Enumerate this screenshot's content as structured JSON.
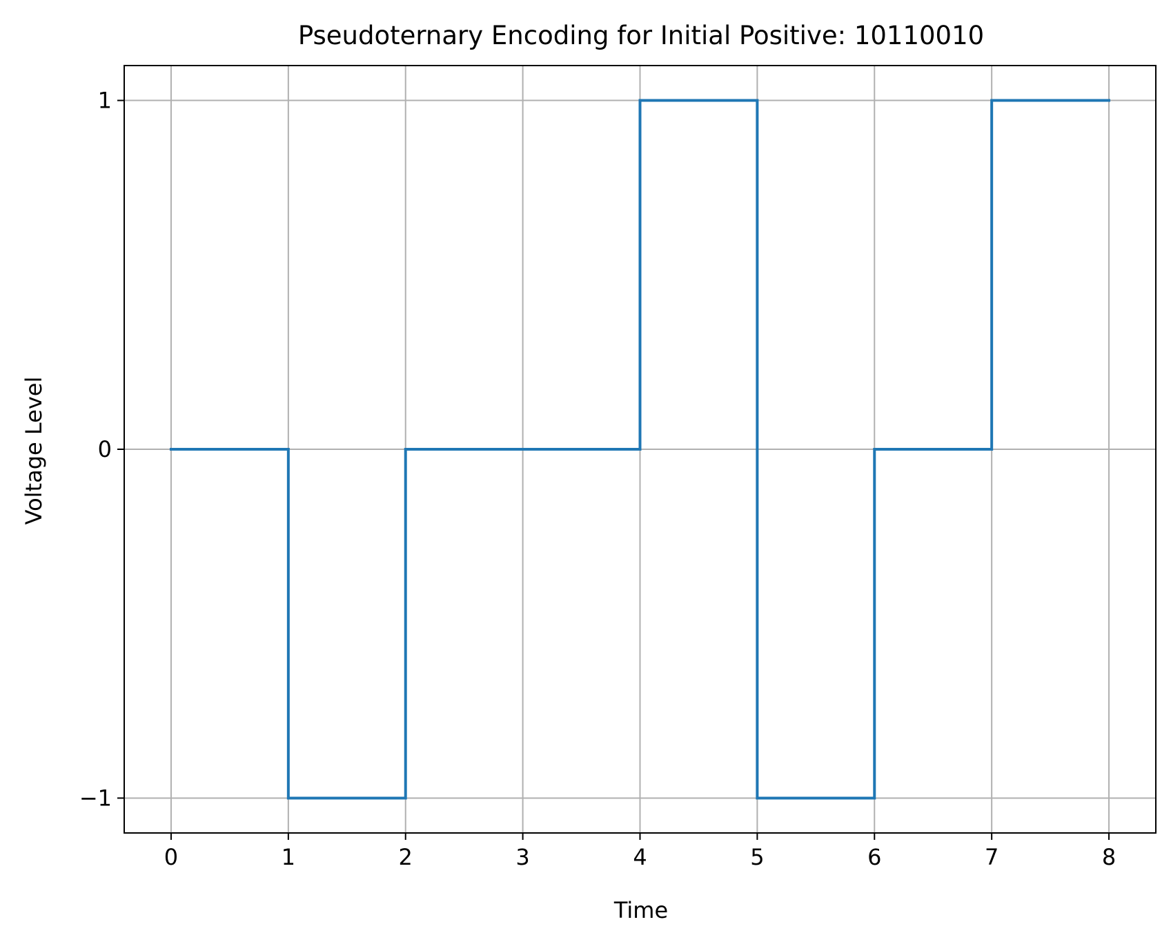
{
  "chart_data": {
    "type": "line",
    "step": "post",
    "title": "Pseudoternary Encoding for Initial Positive: 10110010",
    "xlabel": "Time",
    "ylabel": "Voltage Level",
    "x": [
      0,
      1,
      2,
      3,
      4,
      5,
      6,
      7,
      8
    ],
    "series": [
      {
        "values": [
          0,
          -1,
          0,
          0,
          1,
          -1,
          0,
          1,
          1
        ]
      }
    ],
    "xticks": [
      {
        "value": 0,
        "label": "0"
      },
      {
        "value": 1,
        "label": "1"
      },
      {
        "value": 2,
        "label": "2"
      },
      {
        "value": 3,
        "label": "3"
      },
      {
        "value": 4,
        "label": "4"
      },
      {
        "value": 5,
        "label": "5"
      },
      {
        "value": 6,
        "label": "6"
      },
      {
        "value": 7,
        "label": "7"
      },
      {
        "value": 8,
        "label": "8"
      }
    ],
    "yticks": [
      {
        "value": -1,
        "label": "−1"
      },
      {
        "value": 0,
        "label": "0"
      },
      {
        "value": 1,
        "label": "1"
      }
    ],
    "xlim": [
      -0.4,
      8.4
    ],
    "ylim": [
      -1.1,
      1.1
    ],
    "grid": true,
    "line_color": "#1f77b4",
    "grid_color": "#b0b0b0"
  }
}
